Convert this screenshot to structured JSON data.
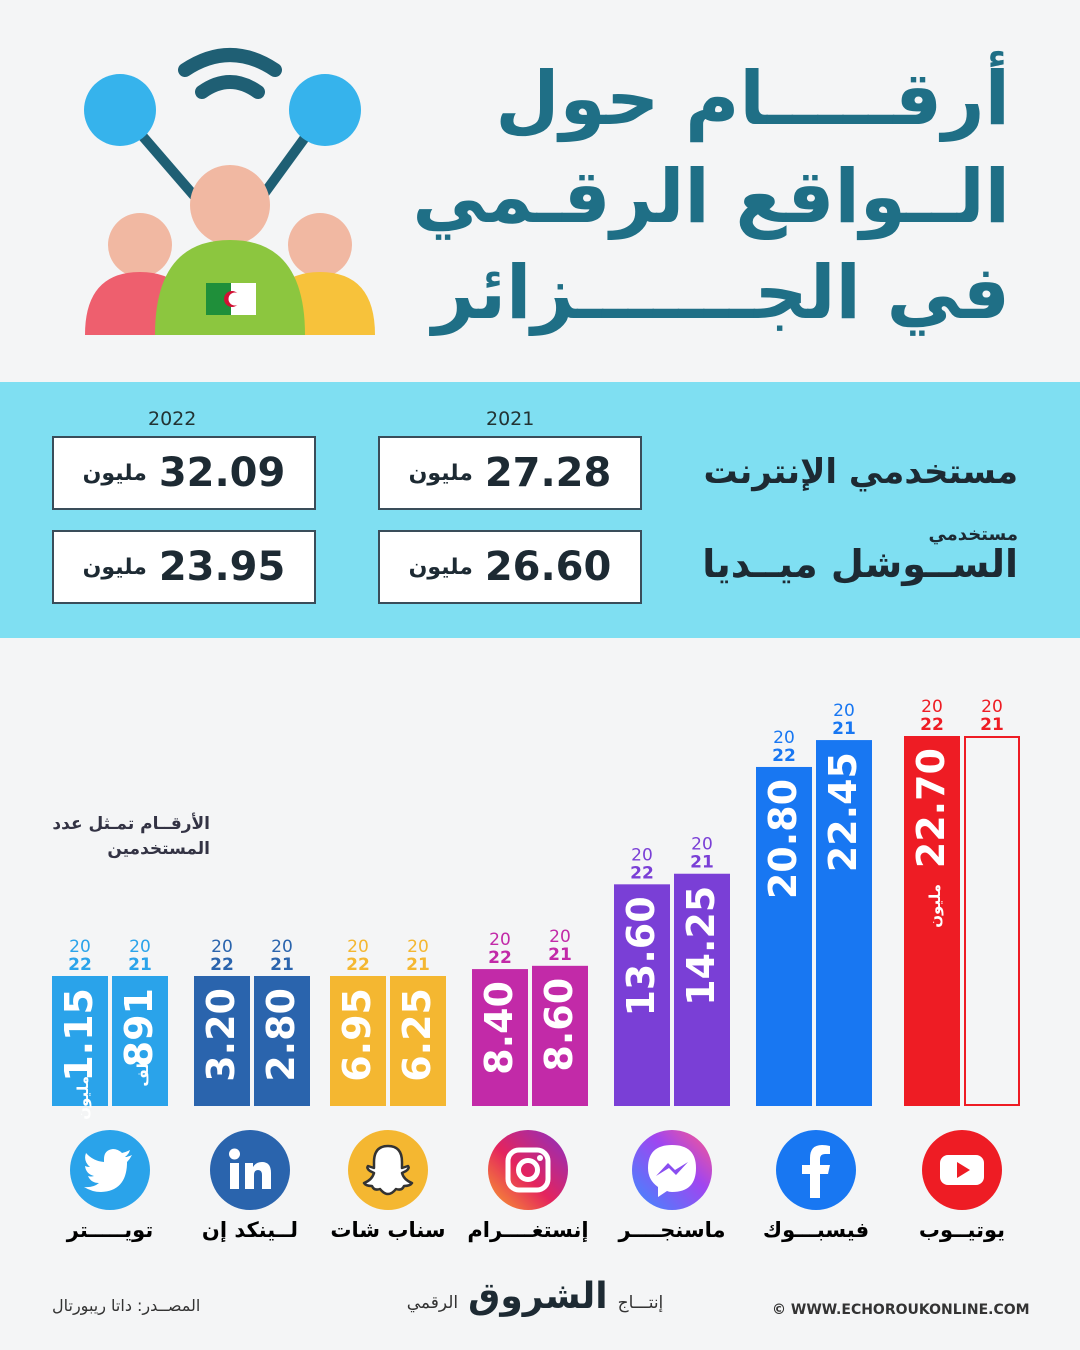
{
  "title": {
    "line1": "أرقـــــام حول",
    "line2": "الــواقع الرقـمي",
    "line3": "في الجـــــــزائر"
  },
  "stats": {
    "year_2021": "2021",
    "year_2022": "2022",
    "internet_label": "مستخدمي الإنترنت",
    "social_label_small": "مستخدمي",
    "social_label_big": "الســوشل ميــديا",
    "unit": "مليون",
    "internet_2021": "27.28",
    "internet_2022": "32.09",
    "social_2021": "26.60",
    "social_2022": "23.95"
  },
  "note": "الأرقــام تمـثل عدد المستخدمين",
  "chart_data": {
    "type": "bar",
    "title": "",
    "categories": [
      "يوتيــوب",
      "فيسبـــوك",
      "ماسنجــــر",
      "إنستغــــرام",
      "سناب شات",
      "لــينكد إن",
      "تويـــــتر"
    ],
    "series": [
      {
        "name": "2021",
        "values": [
          null,
          22.45,
          14.25,
          8.6,
          6.25,
          2.8,
          0.891
        ],
        "labels": [
          "",
          "22.45",
          "14.25",
          "8.60",
          "6.25",
          "2.80",
          "891"
        ]
      },
      {
        "name": "2022",
        "values": [
          22.7,
          20.8,
          13.6,
          8.4,
          6.95,
          3.2,
          1.15
        ],
        "labels": [
          "22.70",
          "20.80",
          "13.60",
          "8.40",
          "6.95",
          "3.20",
          "1.15"
        ]
      }
    ],
    "unit_labels": {
      "youtube_2022": "مليون",
      "twitter_2022": "مليون",
      "twitter_2021": "ألف"
    },
    "year_tag_top": "20",
    "year_tag_2021": "21",
    "year_tag_2022": "22",
    "colors": [
      "#ee1c24",
      "#1877f2",
      "#7a3fd6",
      "#c22aa8",
      "#f4b731",
      "#2a64ad",
      "#2aa3ea"
    ],
    "name_colors": [
      "#e11b22",
      "#152a6e",
      "#6b3fd0",
      "#b62aa0",
      "#f0a91f",
      "#23529a",
      "#2aa3ea"
    ],
    "icons": [
      "youtube-icon",
      "facebook-icon",
      "messenger-icon",
      "instagram-icon",
      "snapchat-icon",
      "linkedin-icon",
      "twitter-icon"
    ]
  },
  "footer": {
    "website": "© WWW.ECHOROUKONLINE.COM",
    "production_prefix": "إنتـــاج",
    "brand": "الشروق",
    "production_suffix": "الرقمي",
    "source": "المصــدر: داتا ريبورتال"
  }
}
